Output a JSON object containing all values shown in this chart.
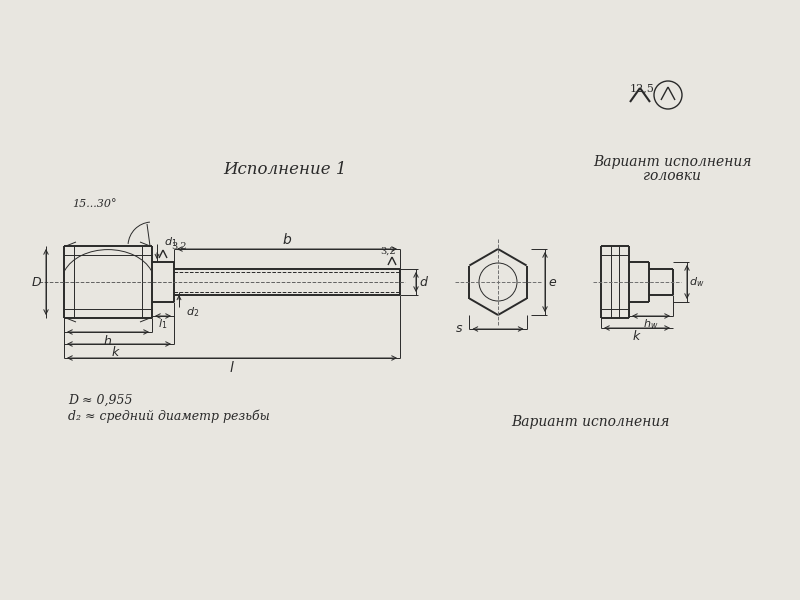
{
  "bg_color": "#e8e6e0",
  "line_color": "#2a2a2a",
  "title1": "Исполнение 1",
  "title2": "Вариант исполнения",
  "title3": "головки",
  "title4": "Вариант исполнения",
  "note1": "D ≈ 0,955",
  "note2": "d₂ ≈ средний диаметр резьбы",
  "roughness_val": "12,5",
  "angle_label": "15...30°"
}
